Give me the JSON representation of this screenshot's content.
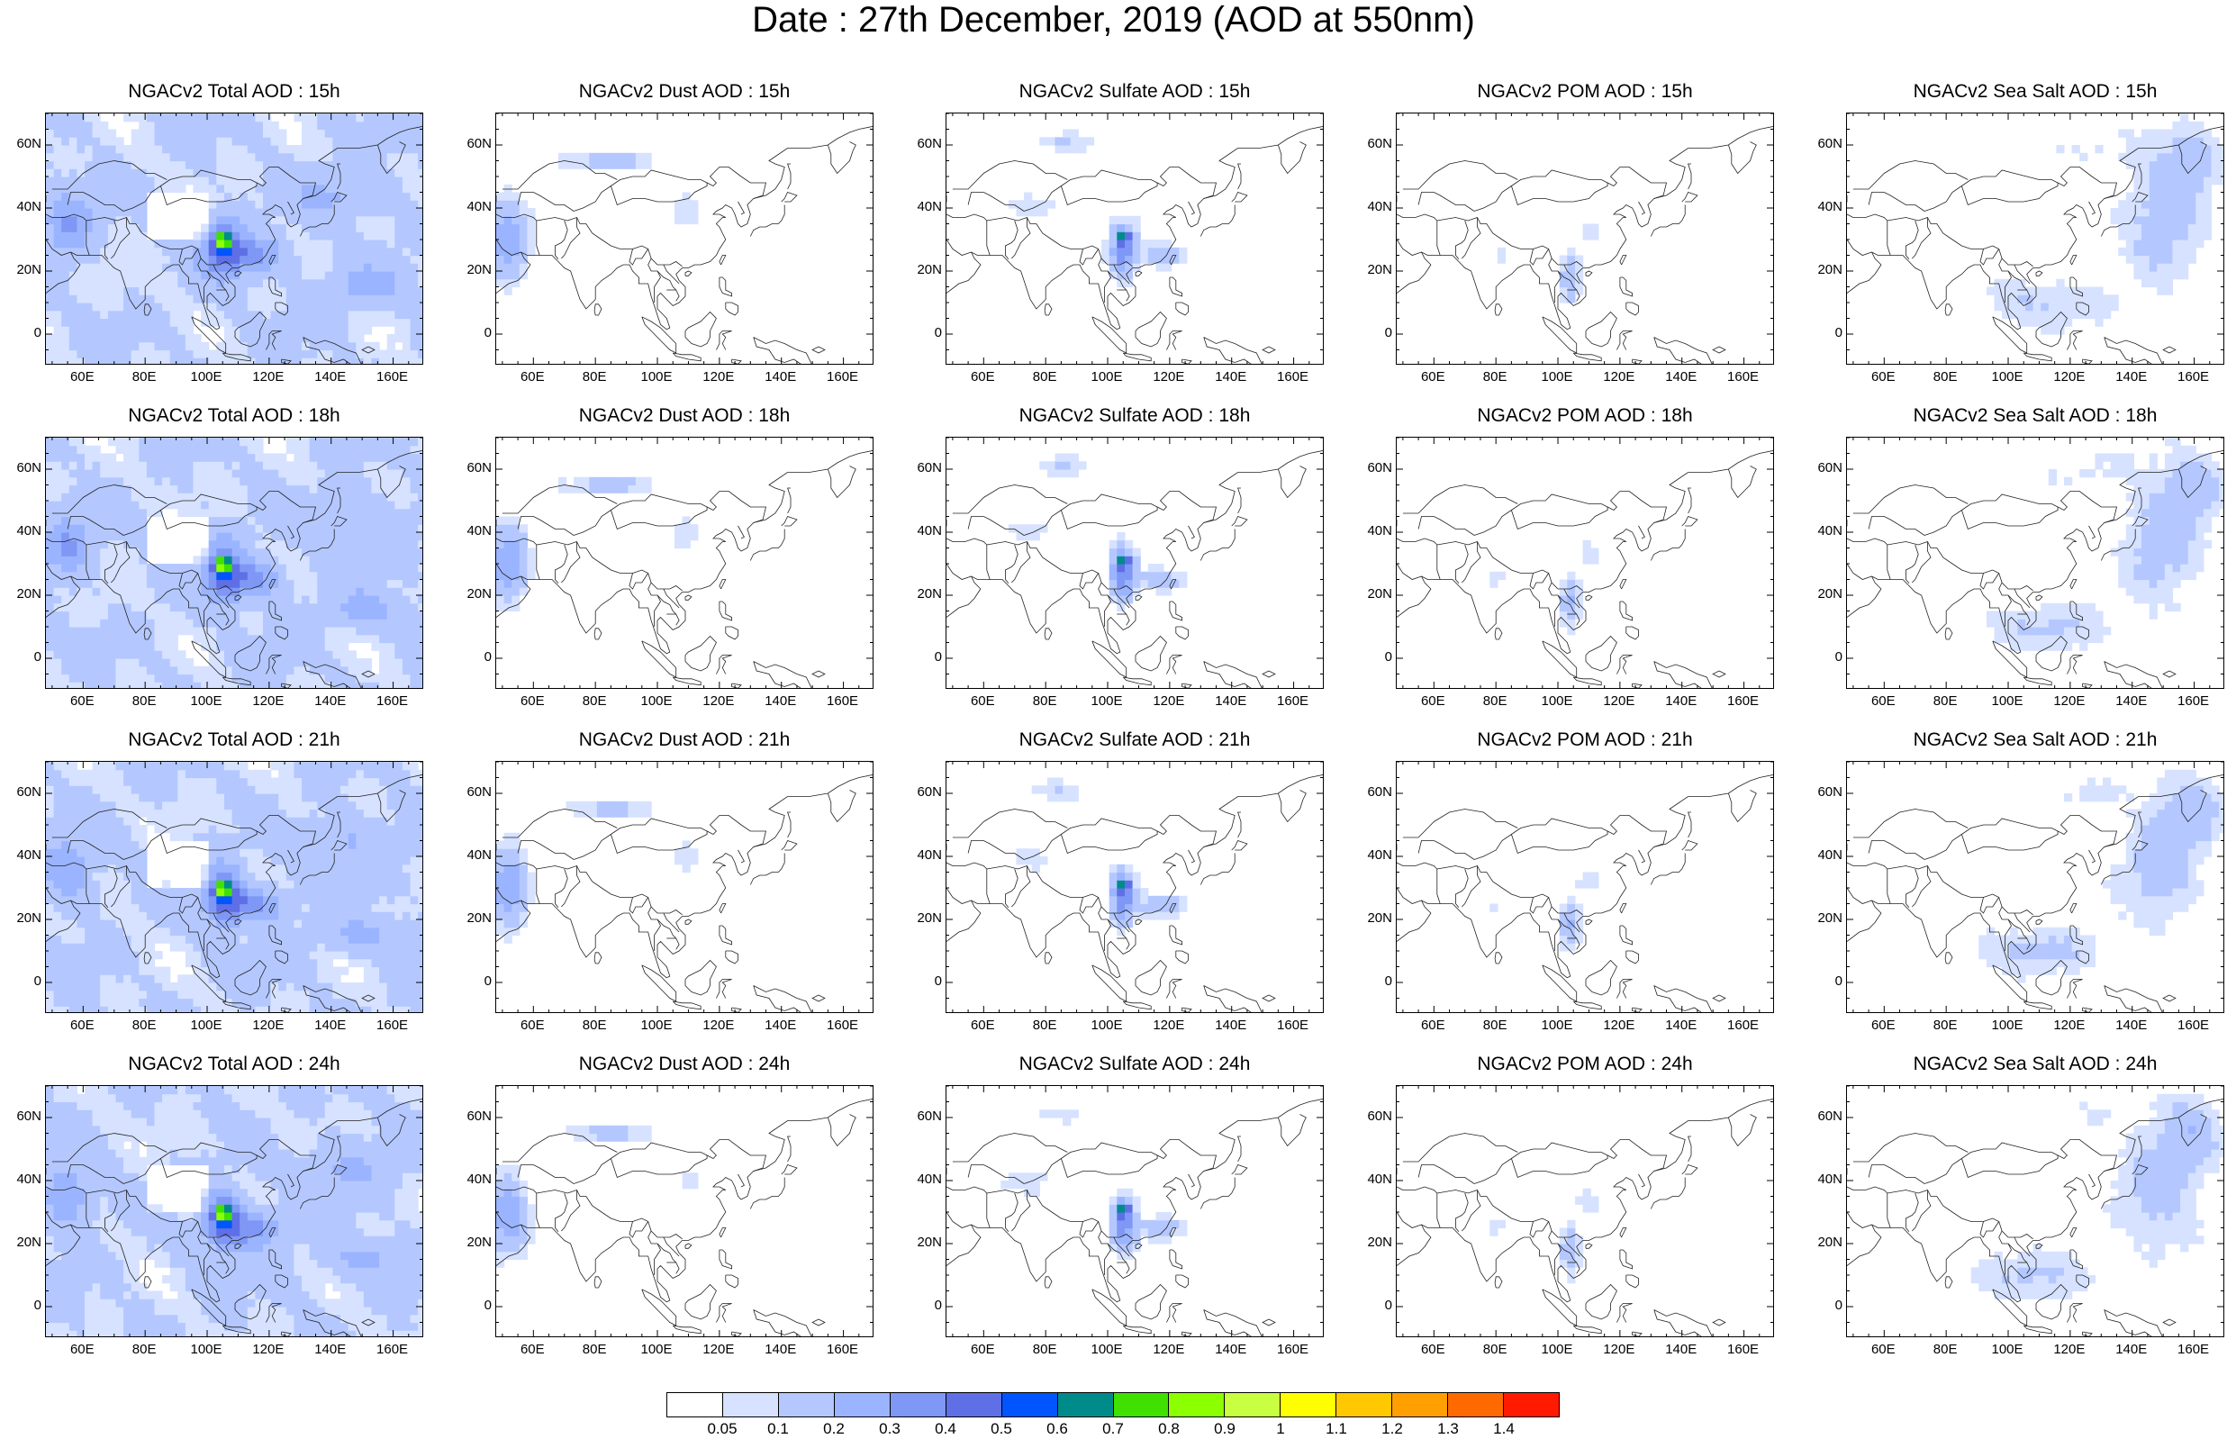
{
  "title": "Date : 27th December, 2019 (AOD at 550nm)",
  "lat_ticks": [
    "60N",
    "40N",
    "20N",
    "0"
  ],
  "lon_ticks": [
    "60E",
    "80E",
    "100E",
    "120E",
    "140E",
    "160E"
  ],
  "panels": [
    {
      "title": "NGACv2 Total AOD : 15h",
      "species": "total"
    },
    {
      "title": "NGACv2 Dust AOD : 15h",
      "species": "dust"
    },
    {
      "title": "NGACv2 Sulfate AOD : 15h",
      "species": "sulfate"
    },
    {
      "title": "NGACv2 POM AOD : 15h",
      "species": "pom"
    },
    {
      "title": "NGACv2 Sea Salt AOD : 15h",
      "species": "seasalt"
    },
    {
      "title": "NGACv2 Total AOD : 18h",
      "species": "total"
    },
    {
      "title": "NGACv2 Dust AOD : 18h",
      "species": "dust"
    },
    {
      "title": "NGACv2 Sulfate AOD : 18h",
      "species": "sulfate"
    },
    {
      "title": "NGACv2 POM AOD : 18h",
      "species": "pom"
    },
    {
      "title": "NGACv2 Sea Salt AOD : 18h",
      "species": "seasalt"
    },
    {
      "title": "NGACv2 Total AOD : 21h",
      "species": "total"
    },
    {
      "title": "NGACv2 Dust AOD : 21h",
      "species": "dust"
    },
    {
      "title": "NGACv2 Sulfate AOD : 21h",
      "species": "sulfate"
    },
    {
      "title": "NGACv2 POM AOD : 21h",
      "species": "pom"
    },
    {
      "title": "NGACv2 Sea Salt AOD : 21h",
      "species": "seasalt"
    },
    {
      "title": "NGACv2 Total AOD : 24h",
      "species": "total"
    },
    {
      "title": "NGACv2 Dust AOD : 24h",
      "species": "dust"
    },
    {
      "title": "NGACv2 Sulfate AOD : 24h",
      "species": "sulfate"
    },
    {
      "title": "NGACv2 POM AOD : 24h",
      "species": "pom"
    },
    {
      "title": "NGACv2 Sea Salt  AOD : 24h",
      "species": "seasalt"
    }
  ],
  "colorbar": {
    "labels": [
      "0.05",
      "0.1",
      "0.2",
      "0.3",
      "0.4",
      "0.5",
      "0.6",
      "0.7",
      "0.8",
      "0.9",
      "1",
      "1.1",
      "1.2",
      "1.3",
      "1.4"
    ],
    "colors": [
      "#ffffff",
      "#d6e2ff",
      "#b4c8ff",
      "#9bb4ff",
      "#7f97f5",
      "#5f6fe6",
      "#0055ff",
      "#008b8b",
      "#40e000",
      "#8cff00",
      "#c8ff40",
      "#ffff00",
      "#ffc800",
      "#ffa000",
      "#ff6a00",
      "#ff1a00"
    ]
  }
}
